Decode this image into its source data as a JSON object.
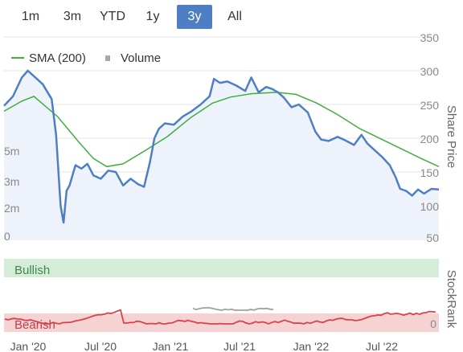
{
  "range_tabs": [
    {
      "label": "1m",
      "active": false
    },
    {
      "label": "3m",
      "active": false
    },
    {
      "label": "YTD",
      "active": false
    },
    {
      "label": "1y",
      "active": false
    },
    {
      "label": "3y",
      "active": true
    },
    {
      "label": "All",
      "active": false
    }
  ],
  "colors": {
    "price": "#4e7fc4",
    "sma": "#3fae3f",
    "volume": "#c8c8c8",
    "bullish_band": "#d5ecd8",
    "bearish_band": "#f5d3d3",
    "rank_line": "#d9424b",
    "rank_line_alt": "#a0a0a0",
    "active_tab": "#4e7fc4"
  },
  "legend": {
    "sma_label": "SMA (200)",
    "volume_label": "Volume"
  },
  "chart_data": {
    "type": "line",
    "right_axis_label": "Share Price",
    "right_ticks": [
      "350",
      "300",
      "250",
      "200",
      "150",
      "100",
      "50"
    ],
    "left_ticks": [
      "5m",
      "3m",
      "2m",
      "0"
    ],
    "x_ticks": [
      "Jan '20",
      "Jul '20",
      "Jan '21",
      "Jul '21",
      "Jan '22",
      "Jul '22"
    ],
    "ylim": [
      50,
      350
    ],
    "x_range": [
      "2019-11",
      "2022-11"
    ],
    "series": [
      {
        "name": "SMA (200)",
        "points": [
          [
            0,
            240
          ],
          [
            1.2,
            255
          ],
          [
            2,
            262
          ],
          [
            3.6,
            232
          ],
          [
            5,
            195
          ],
          [
            6,
            170
          ],
          [
            6.9,
            158
          ],
          [
            8,
            162
          ],
          [
            9.5,
            182
          ],
          [
            11,
            203
          ],
          [
            12.5,
            230
          ],
          [
            14,
            252
          ],
          [
            15.2,
            261
          ],
          [
            16.6,
            266
          ],
          [
            18.3,
            268
          ],
          [
            19.6,
            265
          ],
          [
            21,
            252
          ],
          [
            22.4,
            235
          ],
          [
            23.9,
            214
          ],
          [
            25.4,
            198
          ],
          [
            26.8,
            183
          ],
          [
            28,
            170
          ],
          [
            29.2,
            158
          ]
        ]
      },
      {
        "name": "Share Price",
        "points": [
          [
            0,
            248
          ],
          [
            0.6,
            262
          ],
          [
            1.2,
            290
          ],
          [
            1.6,
            300
          ],
          [
            2,
            292
          ],
          [
            2.6,
            280
          ],
          [
            3.2,
            258
          ],
          [
            3.5,
            205
          ],
          [
            3.8,
            100
          ],
          [
            4,
            75
          ],
          [
            4.2,
            122
          ],
          [
            4.4,
            130
          ],
          [
            4.8,
            160
          ],
          [
            5.2,
            155
          ],
          [
            5.6,
            162
          ],
          [
            6,
            145
          ],
          [
            6.5,
            140
          ],
          [
            7,
            152
          ],
          [
            7.5,
            150
          ],
          [
            8,
            130
          ],
          [
            8.5,
            140
          ],
          [
            9,
            132
          ],
          [
            9.4,
            128
          ],
          [
            9.8,
            165
          ],
          [
            10.1,
            200
          ],
          [
            10.4,
            214
          ],
          [
            10.8,
            222
          ],
          [
            11.4,
            220
          ],
          [
            12,
            232
          ],
          [
            12.6,
            240
          ],
          [
            13.2,
            250
          ],
          [
            13.8,
            262
          ],
          [
            14.1,
            288
          ],
          [
            14.5,
            282
          ],
          [
            15,
            284
          ],
          [
            15.6,
            278
          ],
          [
            16.2,
            270
          ],
          [
            16.6,
            290
          ],
          [
            17.1,
            268
          ],
          [
            17.6,
            276
          ],
          [
            18,
            273
          ],
          [
            18.4,
            268
          ],
          [
            18.8,
            260
          ],
          [
            19.3,
            246
          ],
          [
            19.8,
            250
          ],
          [
            20.4,
            238
          ],
          [
            20.9,
            210
          ],
          [
            21.3,
            198
          ],
          [
            21.8,
            196
          ],
          [
            22.4,
            202
          ],
          [
            22.9,
            197
          ],
          [
            23.5,
            190
          ],
          [
            24,
            205
          ],
          [
            24.4,
            192
          ],
          [
            24.9,
            182
          ],
          [
            25.4,
            172
          ],
          [
            25.9,
            160
          ],
          [
            26.3,
            142
          ],
          [
            26.6,
            125
          ],
          [
            27,
            122
          ],
          [
            27.4,
            115
          ],
          [
            27.8,
            124
          ],
          [
            28.2,
            118
          ],
          [
            28.7,
            125
          ],
          [
            29.2,
            124
          ]
        ]
      }
    ],
    "stockrank": {
      "label_axis": "StockRank",
      "bands": [
        "Bullish",
        "Bearish"
      ],
      "tick": "0"
    }
  }
}
